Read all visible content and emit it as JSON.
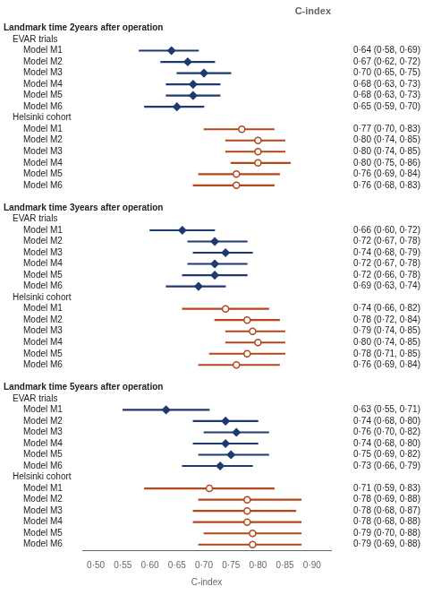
{
  "chart_data": {
    "type": "forest",
    "title": "C-index",
    "xlabel": "C-index",
    "xlim": [
      0.475,
      0.935
    ],
    "xticks": [
      {
        "value": 0.5,
        "label": "0·50"
      },
      {
        "value": 0.55,
        "label": "0·55"
      },
      {
        "value": 0.6,
        "label": "0·60"
      },
      {
        "value": 0.65,
        "label": "0·65"
      },
      {
        "value": 0.7,
        "label": "0·70"
      },
      {
        "value": 0.75,
        "label": "0·75"
      },
      {
        "value": 0.8,
        "label": "0·80"
      },
      {
        "value": 0.85,
        "label": "0·85"
      },
      {
        "value": 0.9,
        "label": "0·90"
      }
    ],
    "grid": false,
    "categories": [
      "Landmark time 2years after operation",
      "EVAR trials",
      "Model M1",
      "Model M2",
      "Model M3",
      "Model M4",
      "Model M5",
      "Model M6",
      "Helsinki cohort",
      "Model M1",
      "Model M2",
      "Model M3",
      "Model M4",
      "Model M5",
      "Model M6",
      null,
      "Landmark time 3years after operation",
      "EVAR trials",
      "Model M1",
      "Model M2",
      "Model M3",
      "Model M4",
      "Model M5",
      "Model M6",
      "Helsinki cohort",
      "Model M1",
      "Model M2",
      "Model M3",
      "Model M4",
      "Model M5",
      "Model M6",
      null,
      "Landmark time 5years after operation",
      "EVAR trials",
      "Model M1",
      "Model M2",
      "Model M3",
      "Model M4",
      "Model M5",
      "Model M6",
      "Helsinki cohort",
      "Model M1",
      "Model M2",
      "Model M3",
      "Model M4",
      "Model M5",
      "Model M6"
    ],
    "series": [
      {
        "name": "EVAR trials",
        "color": "#1f3a6e",
        "marker": "diamond",
        "values": [
          null,
          null,
          0.64,
          0.67,
          0.7,
          0.68,
          0.68,
          0.65,
          null,
          null,
          null,
          null,
          null,
          null,
          null,
          null,
          null,
          null,
          0.66,
          0.72,
          0.74,
          0.72,
          0.72,
          0.69,
          null,
          null,
          null,
          null,
          null,
          null,
          null,
          null,
          null,
          null,
          0.63,
          0.74,
          0.76,
          0.74,
          0.75,
          0.73,
          null,
          null,
          null,
          null,
          null,
          null,
          null
        ],
        "lo": [
          null,
          null,
          0.58,
          0.62,
          0.65,
          0.63,
          0.63,
          0.59,
          null,
          null,
          null,
          null,
          null,
          null,
          null,
          null,
          null,
          null,
          0.6,
          0.67,
          0.68,
          0.67,
          0.66,
          0.63,
          null,
          null,
          null,
          null,
          null,
          null,
          null,
          null,
          null,
          null,
          0.55,
          0.68,
          0.7,
          0.68,
          0.69,
          0.66,
          null,
          null,
          null,
          null,
          null,
          null,
          null
        ],
        "hi": [
          null,
          null,
          0.69,
          0.72,
          0.75,
          0.73,
          0.73,
          0.7,
          null,
          null,
          null,
          null,
          null,
          null,
          null,
          null,
          null,
          null,
          0.72,
          0.78,
          0.79,
          0.78,
          0.78,
          0.74,
          null,
          null,
          null,
          null,
          null,
          null,
          null,
          null,
          null,
          null,
          0.71,
          0.8,
          0.82,
          0.8,
          0.82,
          0.79,
          null,
          null,
          null,
          null,
          null,
          null,
          null
        ],
        "value_labels": [
          null,
          null,
          "0·64 (0·58, 0·69)",
          "0·67 (0·62, 0·72)",
          "0·70 (0·65, 0·75)",
          "0·68 (0·63, 0·73)",
          "0·68 (0·63, 0·73)",
          "0·65 (0·59, 0·70)",
          null,
          null,
          null,
          null,
          null,
          null,
          null,
          null,
          null,
          null,
          "0·66 (0·60, 0·72)",
          "0·72 (0·67, 0·78)",
          "0·74 (0·68, 0·79)",
          "0·72 (0·67, 0·78)",
          "0·72 (0·66, 0·78)",
          "0·69 (0·63, 0·74)",
          null,
          null,
          null,
          null,
          null,
          null,
          null,
          null,
          null,
          null,
          "0·63 (0·55, 0·71)",
          "0·74 (0·68, 0·80)",
          "0·76 (0·70, 0·82)",
          "0·74 (0·68, 0·80)",
          "0·75 (0·69, 0·82)",
          "0·73 (0·66, 0·79)",
          null,
          null,
          null,
          null,
          null,
          null,
          null
        ]
      },
      {
        "name": "Helsinki cohort",
        "color": "#b5451b",
        "marker": "circle",
        "values": [
          null,
          null,
          null,
          null,
          null,
          null,
          null,
          null,
          null,
          0.77,
          0.8,
          0.8,
          0.8,
          0.76,
          0.76,
          null,
          null,
          null,
          null,
          null,
          null,
          null,
          null,
          null,
          null,
          0.74,
          0.78,
          0.79,
          0.8,
          0.78,
          0.76,
          null,
          null,
          null,
          null,
          null,
          null,
          null,
          null,
          null,
          null,
          0.71,
          0.78,
          0.78,
          0.78,
          0.79,
          0.79
        ],
        "lo": [
          null,
          null,
          null,
          null,
          null,
          null,
          null,
          null,
          null,
          0.7,
          0.74,
          0.74,
          0.75,
          0.69,
          0.68,
          null,
          null,
          null,
          null,
          null,
          null,
          null,
          null,
          null,
          null,
          0.66,
          0.72,
          0.74,
          0.74,
          0.71,
          0.69,
          null,
          null,
          null,
          null,
          null,
          null,
          null,
          null,
          null,
          null,
          0.59,
          0.69,
          0.68,
          0.68,
          0.7,
          0.69
        ],
        "hi": [
          null,
          null,
          null,
          null,
          null,
          null,
          null,
          null,
          null,
          0.83,
          0.85,
          0.85,
          0.86,
          0.84,
          0.83,
          null,
          null,
          null,
          null,
          null,
          null,
          null,
          null,
          null,
          null,
          0.82,
          0.84,
          0.85,
          0.85,
          0.85,
          0.84,
          null,
          null,
          null,
          null,
          null,
          null,
          null,
          null,
          null,
          null,
          0.83,
          0.88,
          0.87,
          0.88,
          0.88,
          0.88
        ],
        "value_labels": [
          null,
          null,
          null,
          null,
          null,
          null,
          null,
          null,
          null,
          "0·77 (0·70, 0·83)",
          "0·80 (0·74, 0·85)",
          "0·80 (0·74, 0·85)",
          "0·80 (0·75, 0·86)",
          "0·76 (0·69, 0·84)",
          "0·76 (0·68, 0·83)",
          null,
          null,
          null,
          null,
          null,
          null,
          null,
          null,
          null,
          null,
          "0·74 (0·66, 0·82)",
          "0·78 (0·72, 0·84)",
          "0·79 (0·74, 0·85)",
          "0·80 (0·74, 0·85)",
          "0·78 (0·71, 0·85)",
          "0·76 (0·69, 0·84)",
          null,
          null,
          null,
          null,
          null,
          null,
          null,
          null,
          null,
          null,
          "0·71 (0·59, 0·83)",
          "0·78 (0·69, 0·88)",
          "0·78 (0·68, 0·87)",
          "0·78 (0·68, 0·88)",
          "0·79 (0·70, 0·88)",
          "0·79 (0·69, 0·88)"
        ]
      }
    ]
  }
}
